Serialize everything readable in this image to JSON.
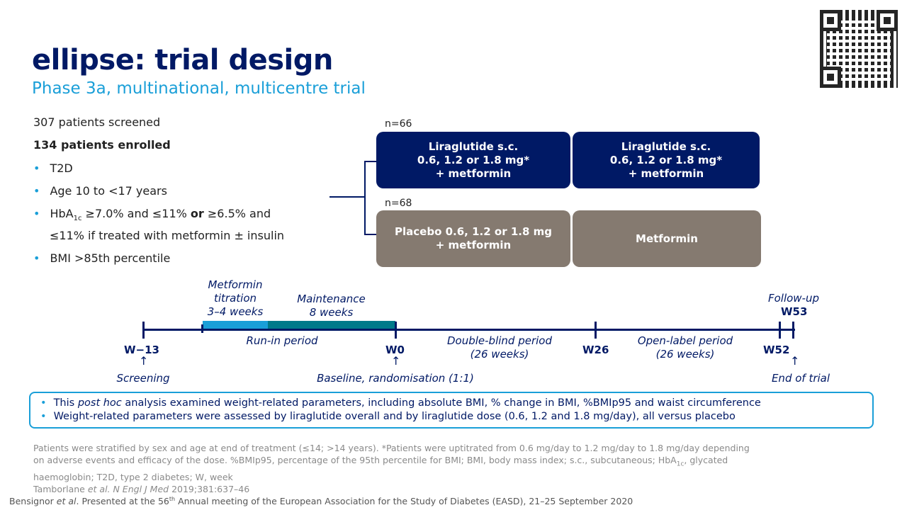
{
  "title": "ellipse: trial design",
  "subtitle": "Phase 3a, multinational, multicentre trial",
  "left": {
    "screened": "307 patients screened",
    "enrolled": "134 patients enrolled",
    "bullets": [
      "T2D",
      "Age 10 to <17 years"
    ],
    "hba1c": {
      "a": "HbA",
      "sub": "1c",
      "b": " ≥7.0% and ≤11% ",
      "or": "or",
      "c": " ≥6.5% and",
      "line2": "≤11% if treated with metformin ± insulin"
    },
    "bmi": "BMI >85th percentile"
  },
  "arms": [
    {
      "n": "n=66",
      "box1": [
        "Liraglutide s.c.",
        "0.6, 1.2 or 1.8 mg*",
        "+ metformin"
      ],
      "box2": [
        "Liraglutide s.c.",
        "0.6, 1.2 or 1.8 mg*",
        "+ metformin"
      ]
    },
    {
      "n": "n=68",
      "box1": [
        "Placebo 0.6, 1.2 or 1.8 mg",
        "+ metformin"
      ],
      "box2": [
        "Metformin"
      ]
    }
  ],
  "colors": {
    "navy": "#001965",
    "grey": "#857a70",
    "light_blue": "#1a9fd8",
    "teal": "#007a8a"
  },
  "timeline": {
    "titration": [
      "Metformin",
      "titration",
      "3–4 weeks"
    ],
    "maintenance": [
      "Maintenance",
      "8 weeks"
    ],
    "runin": "Run-in period",
    "doubleblind": [
      "Double-blind period",
      "(26 weeks)"
    ],
    "openlabel": [
      "Open-label period",
      "(26 weeks)"
    ],
    "followup": "Follow-up",
    "weeks": {
      "w_13": "W−13",
      "w0": "W0",
      "w26": "W26",
      "w52": "W52",
      "w53": "W53"
    },
    "screening": "Screening",
    "baseline": "Baseline, randomisation (1:1)",
    "end": "End of trial"
  },
  "note": {
    "b1_a": "This ",
    "b1_it": "post hoc",
    "b1_b": " analysis examined weight-related parameters, including absolute BMI, % change in BMI, %BMIp95 and waist circumference",
    "b2": "Weight-related parameters were assessed by liraglutide overall and by liraglutide dose (0.6, 1.2 and 1.8 mg/day), all versus placebo"
  },
  "footnote": {
    "l1": "Patients were stratified by sex and age at end of treatment (≤14; >14 years). *Patients were uptitrated from 0.6 mg/day to 1.2 mg/day to 1.8 mg/day depending",
    "l2a": "on adverse events and efficacy of the dose. %BMIp95, percentage of the 95th percentile for BMI; BMI, body mass index; s.c., subcutaneous; HbA",
    "l2sub": "1c",
    "l2b": ", glycated",
    "l3": "haemoglobin; T2D, type 2 diabetes; W, week",
    "ref_a": "Tamborlane ",
    "ref_it": "et al. N Engl J Med",
    "ref_b": " 2019;381:637–46"
  },
  "citation": {
    "a": "Bensignor ",
    "it": "et al",
    "b": ". Presented at the 56",
    "sup": "th",
    "c": " Annual meeting of the European Association for the Study of Diabetes (EASD), 21–25 September 2020"
  }
}
